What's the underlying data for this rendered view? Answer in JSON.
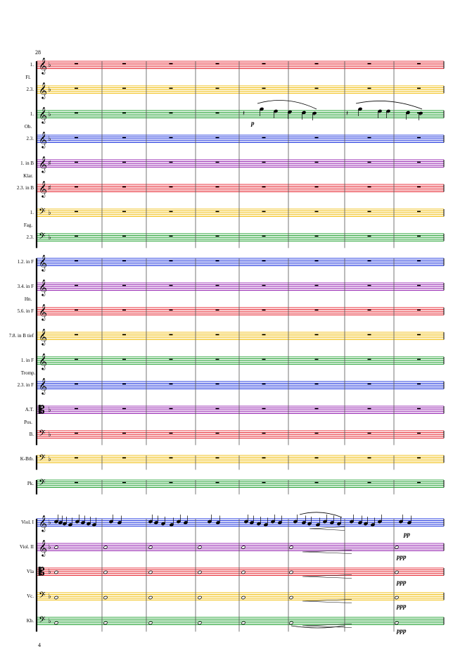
{
  "page": {
    "measure_number": "28",
    "page_number": "4"
  },
  "colors": {
    "red": "#e8323c",
    "yellow": "#f2c21b",
    "green": "#2aa53a",
    "blue": "#2a3fe0",
    "purple": "#9b2fb5"
  },
  "staves": [
    {
      "label": "1.",
      "color": "red",
      "clef": "treble",
      "key": "♭"
    },
    {
      "label": "2.3.",
      "color": "yellow",
      "clef": "treble",
      "key": "♭"
    },
    {
      "label": "1.",
      "color": "green",
      "clef": "treble",
      "key": "♭"
    },
    {
      "label": "2.3.",
      "color": "blue",
      "clef": "treble",
      "key": "♭"
    },
    {
      "label": "1. in B",
      "color": "purple",
      "clef": "treble",
      "key": "♯"
    },
    {
      "label": "2.3. in B",
      "color": "red",
      "clef": "treble",
      "key": "♯"
    },
    {
      "label": "1.",
      "color": "yellow",
      "clef": "bass",
      "key": "♭"
    },
    {
      "label": "2.3.",
      "color": "green",
      "clef": "bass",
      "key": "♭"
    },
    {
      "label": "1.2. in F",
      "color": "blue",
      "clef": "treble",
      "key": ""
    },
    {
      "label": "3.4. in F",
      "color": "purple",
      "clef": "treble",
      "key": ""
    },
    {
      "label": "5.6. in F",
      "color": "red",
      "clef": "treble",
      "key": ""
    },
    {
      "label": "7.8. in B tief",
      "color": "yellow",
      "clef": "treble",
      "key": ""
    },
    {
      "label": "1. in F",
      "color": "green",
      "clef": "treble",
      "key": ""
    },
    {
      "label": "2.3. in F",
      "color": "blue",
      "clef": "treble",
      "key": ""
    },
    {
      "label": "A.T.",
      "color": "purple",
      "clef": "alto",
      "key": "♭"
    },
    {
      "label": "B.",
      "color": "red",
      "clef": "bass",
      "key": "♭"
    },
    {
      "label": "K-Btb.",
      "color": "yellow",
      "clef": "bass",
      "key": "♭"
    },
    {
      "label": "Pk.",
      "color": "green",
      "clef": "bass",
      "key": ""
    },
    {
      "label": "Viol. I",
      "color": "blue",
      "clef": "treble",
      "key": "♭"
    },
    {
      "label": "Viol. II",
      "color": "purple",
      "clef": "treble",
      "key": "♭"
    },
    {
      "label": "Vla",
      "color": "red",
      "clef": "alto",
      "key": "♭"
    },
    {
      "label": "Vc.",
      "color": "yellow",
      "clef": "bass",
      "key": "♭"
    },
    {
      "label": "Kb.",
      "color": "green",
      "clef": "bass",
      "key": "♭"
    }
  ],
  "groups": [
    {
      "label": "Fl."
    },
    {
      "label": "Ob."
    },
    {
      "label": "Klar."
    },
    {
      "label": "Fag."
    },
    {
      "label": "Hn."
    },
    {
      "label": "Tromp."
    },
    {
      "label": "Pos."
    }
  ],
  "dynamics": {
    "oboe": "p",
    "viol1": "pp",
    "viol2": "ppp",
    "vla": "ppp",
    "vc": "ppp",
    "kb": "ppp"
  }
}
